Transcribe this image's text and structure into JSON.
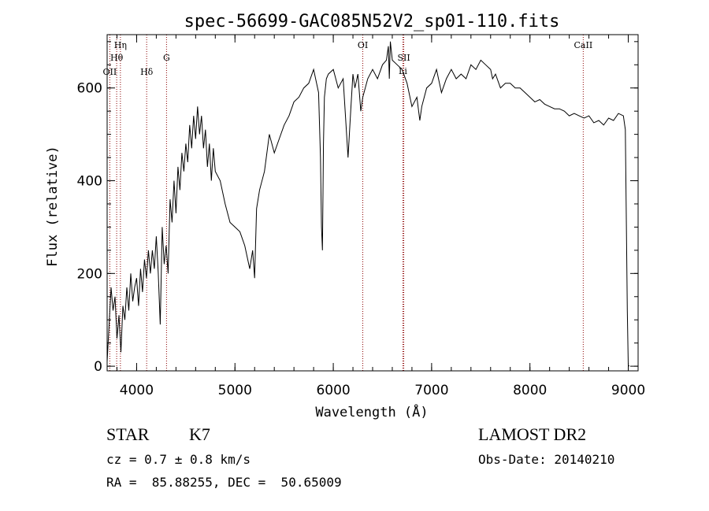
{
  "chart_data": {
    "type": "line",
    "title": "spec-56699-GAC085N52V2_sp01-110.fits",
    "xlabel": "Wavelength (Å)",
    "ylabel": "Flux (relative)",
    "xlim": [
      3700,
      9100
    ],
    "ylim": [
      -10,
      715
    ],
    "xticks": [
      4000,
      5000,
      6000,
      7000,
      8000,
      9000
    ],
    "xtick_labels": [
      "4000",
      "5000",
      "6000",
      "7000",
      "8000",
      "9000"
    ],
    "yticks": [
      0,
      200,
      400,
      600
    ],
    "ytick_labels": [
      "0",
      "200",
      "400",
      "600"
    ],
    "line_color": "#000000",
    "marker_color": "#8b0000",
    "series": [
      {
        "x": [
          3700,
          3720,
          3740,
          3760,
          3780,
          3800,
          3820,
          3840,
          3860,
          3880,
          3900,
          3920,
          3940,
          3960,
          3980,
          4000,
          4020,
          4040,
          4060,
          4080,
          4100,
          4120,
          4140,
          4160,
          4180,
          4200,
          4220,
          4240,
          4260,
          4280,
          4300,
          4320,
          4340,
          4360,
          4380,
          4400,
          4420,
          4440,
          4460,
          4480,
          4500,
          4520,
          4540,
          4560,
          4580,
          4600,
          4620,
          4640,
          4660,
          4680,
          4700,
          4720,
          4740,
          4760,
          4780,
          4800,
          4850,
          4900,
          4950,
          5000,
          5050,
          5100,
          5150,
          5180,
          5200,
          5220,
          5250,
          5300,
          5350,
          5400,
          5450,
          5500,
          5550,
          5600,
          5650,
          5700,
          5750,
          5800,
          5850,
          5870,
          5880,
          5890,
          5900,
          5910,
          5930,
          5950,
          6000,
          6050,
          6100,
          6150,
          6180,
          6200,
          6220,
          6250,
          6280,
          6300,
          6350,
          6400,
          6450,
          6500,
          6540,
          6560,
          6570,
          6580,
          6600,
          6650,
          6700,
          6750,
          6800,
          6850,
          6880,
          6900,
          6950,
          7000,
          7050,
          7100,
          7150,
          7200,
          7250,
          7300,
          7350,
          7400,
          7450,
          7500,
          7550,
          7600,
          7620,
          7650,
          7700,
          7750,
          7800,
          7850,
          7900,
          7950,
          8000,
          8050,
          8100,
          8150,
          8200,
          8250,
          8300,
          8350,
          8400,
          8450,
          8500,
          8550,
          8600,
          8650,
          8700,
          8750,
          8800,
          8850,
          8900,
          8950,
          8970,
          8990,
          9000,
          9010
        ],
        "y": [
          10,
          90,
          170,
          120,
          150,
          60,
          110,
          30,
          130,
          100,
          170,
          120,
          200,
          140,
          170,
          190,
          130,
          210,
          160,
          230,
          190,
          250,
          200,
          250,
          210,
          280,
          200,
          90,
          300,
          220,
          260,
          200,
          360,
          310,
          400,
          330,
          430,
          380,
          460,
          420,
          480,
          440,
          520,
          470,
          540,
          490,
          560,
          500,
          540,
          470,
          510,
          430,
          480,
          400,
          470,
          420,
          400,
          350,
          310,
          300,
          290,
          260,
          210,
          250,
          190,
          340,
          380,
          420,
          500,
          460,
          490,
          520,
          540,
          570,
          580,
          600,
          610,
          640,
          590,
          450,
          300,
          250,
          480,
          580,
          620,
          630,
          640,
          600,
          620,
          450,
          560,
          630,
          600,
          630,
          550,
          580,
          620,
          640,
          620,
          650,
          660,
          690,
          620,
          700,
          660,
          650,
          640,
          610,
          560,
          580,
          530,
          560,
          600,
          610,
          640,
          590,
          620,
          640,
          620,
          630,
          620,
          650,
          640,
          660,
          650,
          640,
          620,
          630,
          600,
          610,
          610,
          600,
          600,
          590,
          580,
          570,
          575,
          565,
          560,
          555,
          555,
          550,
          540,
          545,
          540,
          535,
          540,
          525,
          530,
          520,
          535,
          530,
          545,
          540,
          510,
          120,
          2,
          0
        ]
      }
    ],
    "line_markers": [
      {
        "label": "OII",
        "x": 3727
      },
      {
        "label": "Hη",
        "x": 3835
      },
      {
        "label": "Hθ",
        "x": 3797
      },
      {
        "label": "Hδ",
        "x": 4102
      },
      {
        "label": "G",
        "x": 4304
      },
      {
        "label": "OI",
        "x": 6300
      },
      {
        "label": "SII",
        "x": 6717
      },
      {
        "label": "Li",
        "x": 6708
      },
      {
        "label": "CaII",
        "x": 8542
      }
    ]
  },
  "info": {
    "class_label": "STAR",
    "subclass_label": "K7",
    "cz": "cz = 0.7 ± 0.8 km/s",
    "coords": "RA =  85.88255, DEC =  50.65009",
    "survey": "LAMOST DR2",
    "obs_date": "Obs-Date: 20140210"
  }
}
